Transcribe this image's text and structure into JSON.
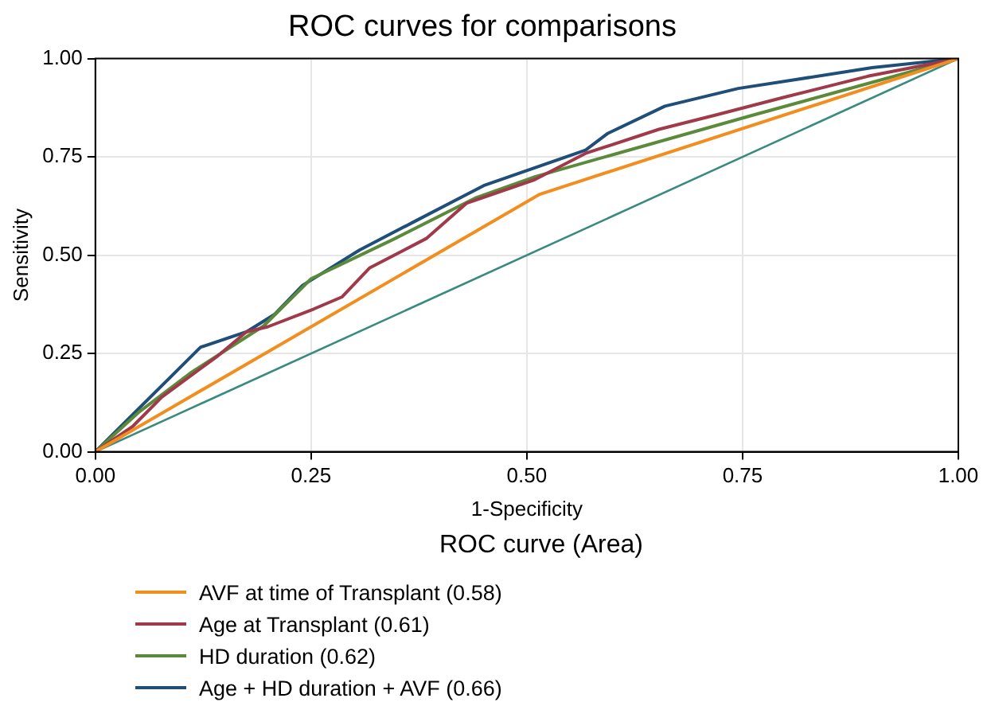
{
  "chart_data": {
    "type": "line",
    "title": "ROC curves for comparisons",
    "xlabel": "1-Specificity",
    "ylabel": "Sensitivity",
    "legend_title": "ROC curve (Area)",
    "xlim": [
      0,
      1
    ],
    "ylim": [
      0,
      1
    ],
    "xticks": [
      {
        "value": 0,
        "label": "0.00"
      },
      {
        "value": 0.25,
        "label": "0.25"
      },
      {
        "value": 0.5,
        "label": "0.50"
      },
      {
        "value": 0.75,
        "label": "0.75"
      },
      {
        "value": 1,
        "label": "1.00"
      }
    ],
    "yticks": [
      {
        "value": 0,
        "label": "0.00"
      },
      {
        "value": 0.25,
        "label": "0.25"
      },
      {
        "value": 0.5,
        "label": "0.50"
      },
      {
        "value": 0.75,
        "label": "0.75"
      },
      {
        "value": 1,
        "label": "1.00"
      }
    ],
    "grid": true,
    "legend": "bottom",
    "marker": "none",
    "line_style": "solid",
    "series": [
      {
        "name": "AVF at time of Transplant (0.58)",
        "color": "#f28e1f",
        "x": [
          0,
          0.515,
          1
        ],
        "values": [
          0,
          0.655,
          1
        ]
      },
      {
        "name": "Age at Transplant (0.61)",
        "color": "#a03a4a",
        "x": [
          0,
          0.043,
          0.077,
          0.142,
          0.175,
          0.2,
          0.253,
          0.286,
          0.318,
          0.384,
          0.43,
          0.509,
          0.568,
          0.653,
          0.718,
          0.797,
          0.895,
          1
        ],
        "values": [
          0,
          0.064,
          0.139,
          0.244,
          0.305,
          0.318,
          0.363,
          0.394,
          0.468,
          0.543,
          0.632,
          0.692,
          0.759,
          0.82,
          0.856,
          0.901,
          0.955,
          1
        ]
      },
      {
        "name": "HD duration (0.62)",
        "color": "#5a8a3a",
        "x": [
          0,
          0.05,
          0.11,
          0.195,
          0.25,
          0.345,
          0.44,
          0.51,
          0.76,
          1
        ],
        "values": [
          0,
          0.1,
          0.2,
          0.32,
          0.44,
          0.54,
          0.645,
          0.7,
          0.855,
          1
        ]
      },
      {
        "name": "Age + HD duration + AVF (0.66)",
        "color": "#1f4e79",
        "x": [
          0,
          0.043,
          0.122,
          0.175,
          0.208,
          0.24,
          0.306,
          0.371,
          0.45,
          0.509,
          0.568,
          0.594,
          0.66,
          0.745,
          0.81,
          0.9,
          1
        ],
        "values": [
          0,
          0.094,
          0.266,
          0.305,
          0.35,
          0.423,
          0.513,
          0.587,
          0.677,
          0.722,
          0.767,
          0.81,
          0.879,
          0.924,
          0.946,
          0.977,
          1
        ]
      },
      {
        "color": "#3a8a80",
        "x": [
          0,
          1
        ],
        "values": [
          0,
          1
        ]
      }
    ]
  }
}
